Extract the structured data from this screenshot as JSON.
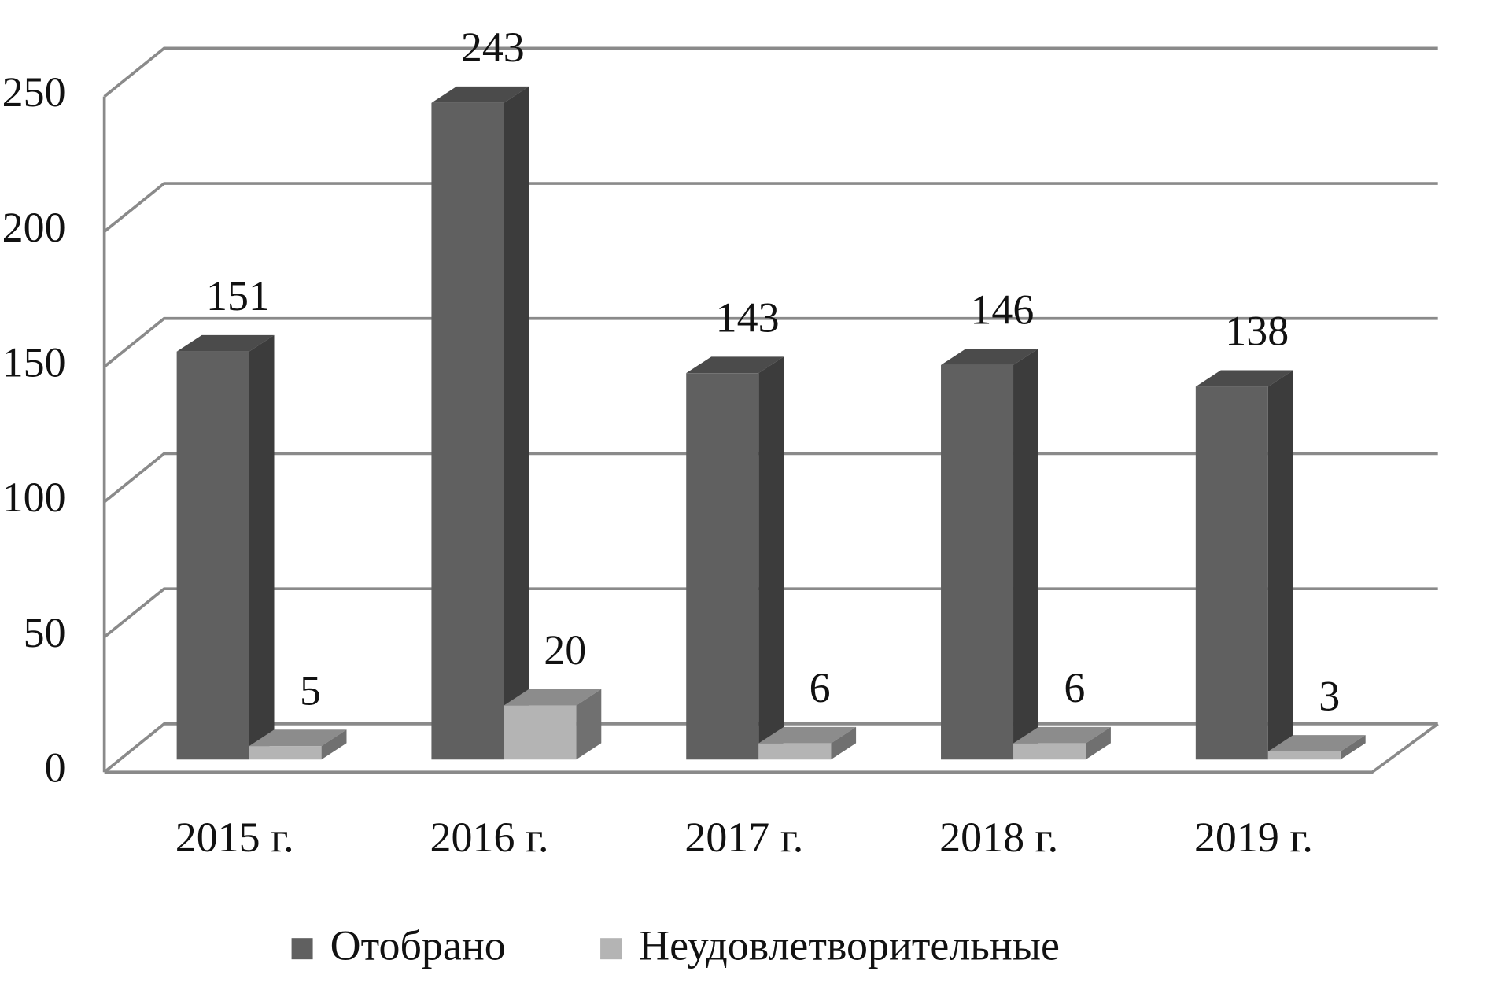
{
  "chart_data": {
    "type": "bar3d",
    "categories": [
      "2015 г.",
      "2016 г.",
      "2017 г.",
      "2018 г.",
      "2019 г."
    ],
    "series": [
      {
        "name": "Отобрано",
        "color": "#606060",
        "values": [
          151,
          243,
          143,
          146,
          138
        ]
      },
      {
        "name": "Неудовлетворительные",
        "color": "#b4b4b4",
        "values": [
          5,
          20,
          6,
          6,
          3
        ]
      }
    ],
    "ylim": [
      0,
      250
    ],
    "yticks": [
      0,
      50,
      100,
      150,
      200,
      250
    ],
    "grid": true,
    "legend": "bottom"
  }
}
